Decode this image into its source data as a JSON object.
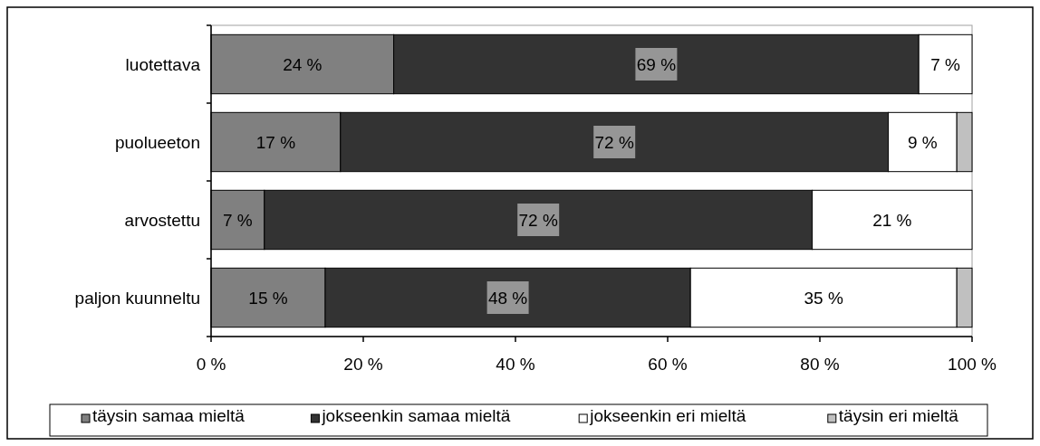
{
  "chart_data": {
    "type": "bar",
    "orientation": "horizontal",
    "stacked": true,
    "categories": [
      "luotettava",
      "puolueeton",
      "arvostettu",
      "paljon kuunneltu"
    ],
    "series": [
      {
        "name": "täysin samaa mieltä",
        "color": "#808080",
        "values": [
          24,
          17,
          7,
          15
        ],
        "value_labels": [
          "24 %",
          "17 %",
          "7 %",
          "15 %"
        ]
      },
      {
        "name": "jokseenkin samaa mieltä",
        "color": "#333333",
        "values": [
          69,
          72,
          72,
          48
        ],
        "value_labels": [
          "69 %",
          "72 %",
          "72 %",
          "48 %"
        ]
      },
      {
        "name": "jokseenkin eri mieltä",
        "color": "#ffffff",
        "values": [
          7,
          9,
          21,
          35
        ],
        "value_labels": [
          "7 %",
          "9 %",
          "21 %",
          "35 %"
        ]
      },
      {
        "name": "täysin eri mieltä",
        "color": "#c0c0c0",
        "values": [
          null,
          2,
          null,
          2
        ],
        "value_labels": [
          null,
          null,
          null,
          null
        ]
      }
    ],
    "xlim": [
      0,
      100
    ],
    "xticks": [
      {
        "value": 0,
        "label": "0 %"
      },
      {
        "value": 20,
        "label": "20 %"
      },
      {
        "value": 40,
        "label": "40 %"
      },
      {
        "value": 60,
        "label": "60 %"
      },
      {
        "value": 80,
        "label": "80 %"
      },
      {
        "value": 100,
        "label": "100 %"
      }
    ],
    "grid": false,
    "legend": "bottom"
  }
}
